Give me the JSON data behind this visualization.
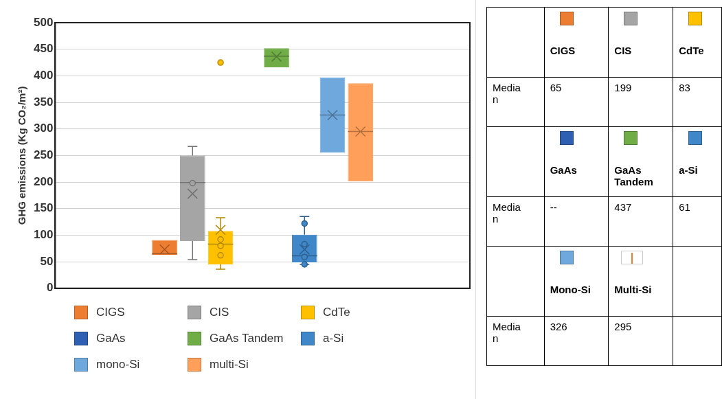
{
  "chart_data": [
    {
      "type": "box",
      "ylabel": "GHG emissions (Kg CO₂/m²)",
      "categories": [
        null
      ],
      "ylim": [
        0,
        500
      ],
      "yticks": [
        0,
        50,
        100,
        150,
        200,
        250,
        300,
        350,
        400,
        450,
        500
      ],
      "grid": "y",
      "legend": "bottom",
      "series": [
        {
          "name": "CIGS",
          "color": "#ed7d31",
          "boxes": [
            {
              "low": 63,
              "q1": 63,
              "median": 65,
              "q3": 91,
              "high": 91,
              "mean": 73
            }
          ]
        },
        {
          "name": "CIS",
          "color": "#a5a5a5",
          "boxes": [
            {
              "low": 54,
              "q1": 89,
              "median": 199,
              "q3": 250,
              "high": 267,
              "mean": 178,
              "outliers": [
                198
              ]
            }
          ]
        },
        {
          "name": "CdTe",
          "color": "#ffc000",
          "boxes": [
            {
              "low": 36,
              "q1": 45,
              "median": 83,
              "q3": 108,
              "high": 133,
              "mean": 110,
              "outliers": [
                92,
                80,
                62,
                425
              ]
            }
          ]
        },
        {
          "name": "GaAs",
          "color": "#2f5fb3",
          "boxes": [
            null
          ]
        },
        {
          "name": "GaAs Tandem",
          "color": "#70ad47",
          "boxes": [
            {
              "low": 416,
              "q1": 416,
              "median": 437,
              "q3": 452,
              "high": 452,
              "mean": 436
            }
          ]
        },
        {
          "name": "a-Si",
          "color": "#3f87c8",
          "boxes": [
            {
              "low": 45,
              "q1": 49,
              "median": 61,
              "q3": 101,
              "high": 135,
              "mean": 73,
              "outliers": [
                122,
                83,
                59,
                45
              ]
            }
          ]
        },
        {
          "name": "mono-Si",
          "color": "#6fa8dc",
          "boxes": [
            {
              "low": 255,
              "q1": 255,
              "median": 326,
              "q3": 397,
              "high": 397,
              "mean": 326
            }
          ]
        },
        {
          "name": "multi-Si",
          "color": "#ff9f5a",
          "boxes": [
            {
              "low": 201,
              "q1": 201,
              "median": 295,
              "q3": 386,
              "high": 386,
              "mean": 295
            }
          ]
        }
      ]
    },
    {
      "type": "other",
      "ylabel": "Median",
      "categories": [
        "CIGS",
        "CIS",
        "CdTe",
        "GaAs",
        "GaAs Tandem",
        "a-Si",
        "Mono-Si",
        "Multi-Si"
      ],
      "value_labels": [
        "65",
        "199",
        "83",
        "--",
        "437",
        "61",
        "326",
        "295"
      ],
      "colors": [
        "#ed7d31",
        "#a5a5a5",
        "#ffc000",
        "#2f5fb3",
        "#70ad47",
        "#3f87c8",
        "#6fa8dc",
        null
      ]
    }
  ]
}
